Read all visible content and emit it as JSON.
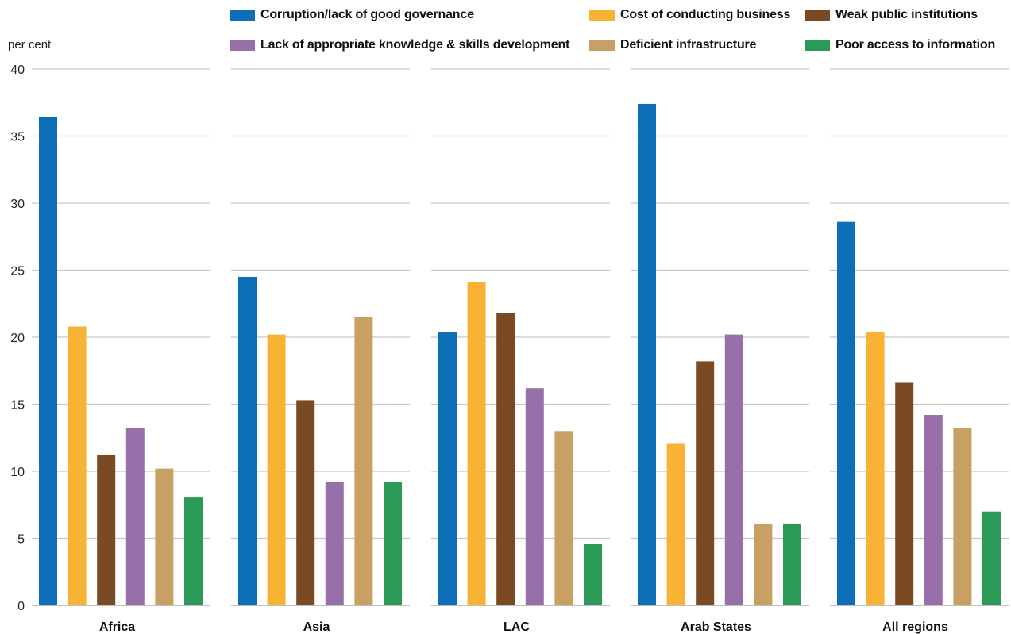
{
  "chart_data": {
    "type": "bar",
    "ylabel": "per cent",
    "ylim": [
      0,
      40
    ],
    "yticks": [
      0,
      5,
      10,
      15,
      20,
      25,
      30,
      35,
      40
    ],
    "grid": true,
    "legend_position": "top",
    "categories": [
      "Africa",
      "Asia",
      "LAC",
      "Arab States",
      "All regions"
    ],
    "series": [
      {
        "name": "Corruption/lack of good governance",
        "color": "#0C6FB7",
        "values": [
          36.4,
          24.5,
          20.4,
          37.4,
          28.6
        ]
      },
      {
        "name": "Cost of conducting business",
        "color": "#F8B334",
        "values": [
          20.8,
          20.2,
          24.1,
          12.1,
          20.4
        ]
      },
      {
        "name": "Weak public institutions",
        "color": "#7A4A24",
        "values": [
          11.2,
          15.3,
          21.8,
          18.2,
          16.6
        ]
      },
      {
        "name": "Lack of appropriate knowledge & skills development",
        "color": "#9870A9",
        "values": [
          13.2,
          9.2,
          16.2,
          20.2,
          14.2
        ]
      },
      {
        "name": "Deficient infrastructure",
        "color": "#C9A063",
        "values": [
          10.2,
          21.5,
          13.0,
          6.1,
          13.2
        ]
      },
      {
        "name": "Poor access to information",
        "color": "#2B9A57",
        "values": [
          8.1,
          9.2,
          4.6,
          6.1,
          7.0
        ]
      }
    ]
  }
}
